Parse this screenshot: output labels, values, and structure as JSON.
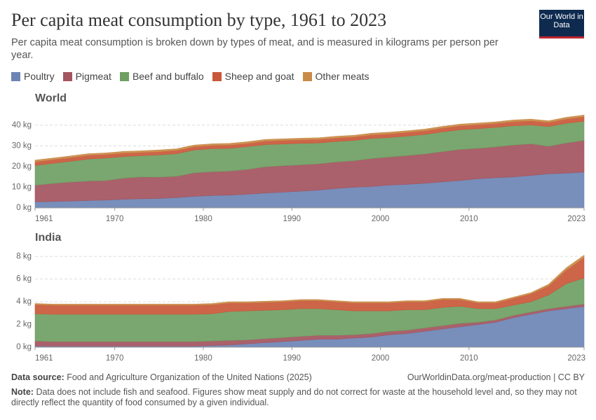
{
  "title": "Per capita meat consumption by type, 1961 to 2023",
  "subtitle": "Per capita meat consumption is broken down by types of meat, and is measured in kilograms per person per year.",
  "logo": "Our World in Data",
  "source_label": "Data source:",
  "source": "Food and Agriculture Organization of the United Nations (2025)",
  "url": "OurWorldinData.org/meat-production | CC BY",
  "note_label": "Note:",
  "note": "Data does not include fish and seafood. Figures show meat supply and do not correct for waste at the household level and, so they may not directly reflect the quantity of food consumed by a given individual.",
  "chart_data": [
    {
      "type": "area",
      "stacked": true,
      "title": "World",
      "x": [
        1961,
        1963,
        1965,
        1967,
        1969,
        1971,
        1973,
        1975,
        1977,
        1979,
        1981,
        1983,
        1985,
        1987,
        1989,
        1991,
        1993,
        1995,
        1997,
        1999,
        2001,
        2003,
        2005,
        2007,
        2009,
        2011,
        2013,
        2015,
        2017,
        2019,
        2021,
        2023
      ],
      "xlim": [
        1961,
        2023
      ],
      "xticks": [
        1961,
        1970,
        1980,
        1990,
        2000,
        2010,
        2023
      ],
      "ylim": [
        0,
        45
      ],
      "yticks": [
        {
          "value": 0,
          "label": "0 kg"
        },
        {
          "value": 10,
          "label": "10 kg"
        },
        {
          "value": 20,
          "label": "20 kg"
        },
        {
          "value": 30,
          "label": "30 kg"
        },
        {
          "value": 40,
          "label": "40 kg"
        }
      ],
      "grid": true,
      "series": [
        {
          "name": "Poultry",
          "color": "#6d84b5",
          "values": [
            2.9,
            3.1,
            3.3,
            3.6,
            3.8,
            4.2,
            4.4,
            4.6,
            5.0,
            5.6,
            6.0,
            6.2,
            6.6,
            7.2,
            7.6,
            8.1,
            8.6,
            9.4,
            10.0,
            10.4,
            11.0,
            11.4,
            11.9,
            12.6,
            13.2,
            14.1,
            14.6,
            15.0,
            15.7,
            16.5,
            16.8,
            17.3
          ]
        },
        {
          "name": "Pigmeat",
          "color": "#a3545e",
          "values": [
            8.1,
            8.7,
            9.2,
            9.4,
            9.4,
            10.2,
            10.6,
            10.3,
            10.3,
            11.4,
            11.5,
            11.6,
            12.0,
            12.7,
            12.8,
            12.7,
            12.7,
            12.8,
            12.8,
            13.5,
            13.6,
            13.9,
            14.2,
            14.6,
            15.1,
            14.7,
            14.9,
            15.4,
            15.3,
            13.3,
            14.6,
            15.3
          ]
        },
        {
          "name": "Beef and buffalo",
          "color": "#6f9f63",
          "values": [
            9.5,
            9.7,
            10.0,
            10.6,
            10.9,
            10.4,
            10.2,
            10.7,
            10.9,
            11.0,
            11.1,
            11.0,
            11.0,
            10.7,
            10.5,
            10.4,
            10.1,
            9.9,
            9.8,
            9.7,
            9.4,
            9.4,
            9.4,
            9.5,
            9.5,
            9.5,
            9.4,
            9.3,
            9.1,
            9.5,
            9.5,
            9.3
          ]
        },
        {
          "name": "Sheep and goat",
          "color": "#c9583a",
          "values": [
            1.8,
            1.8,
            1.8,
            1.8,
            1.7,
            1.7,
            1.6,
            1.6,
            1.6,
            1.6,
            1.6,
            1.6,
            1.6,
            1.7,
            1.7,
            1.7,
            1.7,
            1.7,
            1.7,
            1.7,
            1.8,
            1.8,
            1.8,
            1.9,
            1.9,
            1.9,
            1.9,
            2.0,
            2.0,
            2.0,
            2.1,
            2.2
          ]
        },
        {
          "name": "Other meats",
          "color": "#c98b48",
          "values": [
            0.8,
            0.8,
            0.8,
            0.8,
            0.8,
            0.8,
            0.8,
            0.8,
            0.8,
            0.8,
            0.8,
            0.8,
            0.8,
            0.8,
            0.8,
            0.8,
            0.8,
            0.8,
            0.8,
            0.8,
            0.8,
            0.8,
            0.8,
            0.8,
            0.8,
            0.8,
            0.8,
            0.8,
            0.8,
            0.8,
            0.8,
            0.8
          ]
        }
      ]
    },
    {
      "type": "area",
      "stacked": true,
      "title": "India",
      "x": [
        1961,
        1963,
        1965,
        1967,
        1969,
        1971,
        1973,
        1975,
        1977,
        1979,
        1981,
        1983,
        1985,
        1987,
        1989,
        1991,
        1993,
        1995,
        1997,
        1999,
        2001,
        2003,
        2005,
        2007,
        2009,
        2011,
        2013,
        2015,
        2017,
        2019,
        2021,
        2023
      ],
      "xlim": [
        1961,
        2023
      ],
      "xticks": [
        1961,
        1970,
        1980,
        1990,
        2000,
        2010,
        2023
      ],
      "ylim": [
        0,
        8.2
      ],
      "yticks": [
        {
          "value": 0,
          "label": "0 kg"
        },
        {
          "value": 2,
          "label": "2 kg"
        },
        {
          "value": 4,
          "label": "4 kg"
        },
        {
          "value": 6,
          "label": "6 kg"
        },
        {
          "value": 8,
          "label": "8 kg"
        }
      ],
      "grid": true,
      "series": [
        {
          "name": "Poultry",
          "color": "#6d84b5",
          "values": [
            0.1,
            0.1,
            0.1,
            0.1,
            0.1,
            0.1,
            0.1,
            0.1,
            0.1,
            0.1,
            0.15,
            0.2,
            0.3,
            0.4,
            0.5,
            0.6,
            0.7,
            0.7,
            0.8,
            0.9,
            1.1,
            1.2,
            1.4,
            1.6,
            1.8,
            2.0,
            2.2,
            2.6,
            2.9,
            3.2,
            3.4,
            3.6
          ]
        },
        {
          "name": "Pigmeat",
          "color": "#a3545e",
          "values": [
            0.45,
            0.4,
            0.4,
            0.4,
            0.4,
            0.4,
            0.4,
            0.4,
            0.4,
            0.4,
            0.4,
            0.4,
            0.35,
            0.35,
            0.35,
            0.35,
            0.35,
            0.35,
            0.3,
            0.3,
            0.3,
            0.3,
            0.3,
            0.3,
            0.3,
            0.2,
            0.2,
            0.2,
            0.2,
            0.2,
            0.2,
            0.2
          ]
        },
        {
          "name": "Beef and buffalo",
          "color": "#6f9f63",
          "values": [
            2.4,
            2.4,
            2.4,
            2.4,
            2.4,
            2.4,
            2.4,
            2.4,
            2.4,
            2.4,
            2.4,
            2.55,
            2.55,
            2.5,
            2.45,
            2.45,
            2.35,
            2.25,
            2.1,
            2.0,
            1.8,
            1.8,
            1.6,
            1.6,
            1.5,
            1.2,
            1.0,
            0.9,
            0.9,
            1.2,
            2.0,
            2.3
          ]
        },
        {
          "name": "Sheep and goat",
          "color": "#c9583a",
          "values": [
            0.8,
            0.8,
            0.8,
            0.8,
            0.8,
            0.8,
            0.8,
            0.8,
            0.8,
            0.8,
            0.8,
            0.75,
            0.7,
            0.7,
            0.7,
            0.7,
            0.7,
            0.7,
            0.7,
            0.7,
            0.7,
            0.7,
            0.7,
            0.7,
            0.6,
            0.5,
            0.5,
            0.6,
            0.7,
            0.8,
            1.2,
            1.8
          ]
        },
        {
          "name": "Other meats",
          "color": "#c98b48",
          "values": [
            0.1,
            0.1,
            0.1,
            0.1,
            0.1,
            0.1,
            0.1,
            0.1,
            0.1,
            0.1,
            0.1,
            0.1,
            0.1,
            0.1,
            0.1,
            0.1,
            0.1,
            0.1,
            0.1,
            0.1,
            0.1,
            0.1,
            0.1,
            0.1,
            0.1,
            0.1,
            0.1,
            0.1,
            0.1,
            0.15,
            0.2,
            0.2
          ]
        }
      ]
    }
  ]
}
